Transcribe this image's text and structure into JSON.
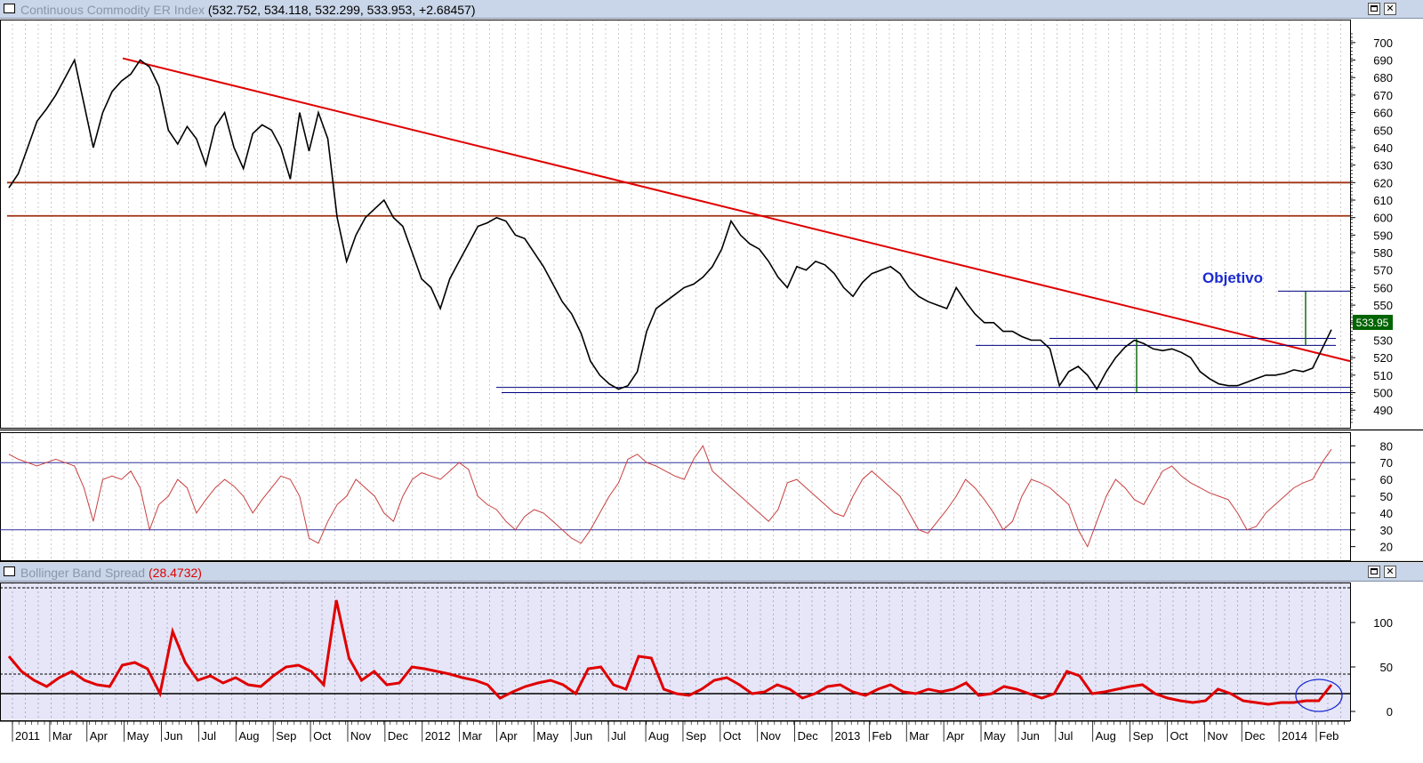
{
  "price_panel": {
    "name": "Continuous Commodity ER Index",
    "values": "(532.752, 534.118, 532.299, 533.953, +2.68457)",
    "last_price_label": "533.95",
    "annotation": "Objetivo"
  },
  "bbspread_panel": {
    "name": "Bollinger Band Spread",
    "value": "(28.4732)"
  },
  "colors": {
    "price": "#000000",
    "trendline": "#e00000",
    "horizontal_resistance": "#a03010",
    "support_lines": "#000080",
    "annotation": "#1a2ad0",
    "rsi": "#c84040",
    "bbspread": "#e00000",
    "bbspread_bg": "#e6e6f8",
    "last_price_bg": "#006400"
  },
  "chart_data": [
    {
      "type": "line",
      "series": [
        {
          "values": [
            617,
            625,
            640,
            655,
            662,
            670,
            680,
            690,
            665,
            640,
            660,
            672,
            678,
            682,
            690,
            686,
            675,
            650,
            642,
            652,
            645,
            630,
            652,
            660,
            640,
            628,
            648,
            653,
            650,
            640,
            622,
            660,
            638,
            660,
            645,
            600,
            575,
            590,
            600,
            605,
            610,
            600,
            595,
            580,
            565,
            560,
            548,
            565,
            575,
            585,
            595,
            597,
            600,
            598,
            590,
            588,
            580,
            572,
            562,
            552,
            545,
            534,
            518,
            510,
            505,
            502,
            504,
            512,
            535,
            548,
            552,
            556,
            560,
            562,
            566,
            572,
            582,
            598,
            590,
            585,
            582,
            575,
            566,
            560,
            572,
            570,
            575,
            573,
            568,
            560,
            555,
            563,
            568,
            570,
            572,
            568,
            560,
            555,
            552,
            550,
            548,
            560,
            552,
            545,
            540,
            540,
            535,
            535,
            532,
            530,
            530,
            525,
            504,
            512,
            515,
            510,
            502,
            512,
            520,
            526,
            530,
            528,
            525,
            524,
            525,
            523,
            520,
            512,
            508,
            505,
            504,
            504,
            506,
            508,
            510,
            510,
            511,
            513,
            512,
            514,
            525,
            536
          ]
        }
      ],
      "y_axis_ticks": [
        490,
        500,
        510,
        520,
        530,
        540,
        550,
        560,
        570,
        580,
        590,
        600,
        610,
        620,
        630,
        640,
        650,
        660,
        670,
        680,
        690,
        700
      ],
      "ylim": [
        483,
        705
      ],
      "x_tick_labels": [
        "2011",
        "Mar",
        "Apr",
        "May",
        "Jun",
        "Jul",
        "Aug",
        "Sep",
        "Oct",
        "Nov",
        "Dec",
        "2012",
        "Mar",
        "Apr",
        "May",
        "Jun",
        "Jul",
        "Aug",
        "Sep",
        "Oct",
        "Nov",
        "Dec",
        "2013",
        "Feb",
        "Mar",
        "Apr",
        "May",
        "Jun",
        "Jul",
        "Aug",
        "Sep",
        "Oct",
        "Nov",
        "Dec",
        "2014",
        "Feb"
      ],
      "horizontal_lines": [
        620,
        601
      ],
      "trendline": {
        "from": [
          "Apr 2011",
          691
        ],
        "to": [
          "Feb 2014",
          518
        ]
      },
      "support_zone": [
        500,
        503
      ],
      "resistance_zone": [
        527,
        531
      ],
      "target": 558
    },
    {
      "type": "line",
      "series": [
        {
          "values": [
            75,
            72,
            70,
            68,
            70,
            72,
            70,
            68,
            55,
            35,
            60,
            62,
            60,
            65,
            55,
            30,
            45,
            50,
            60,
            55,
            40,
            48,
            55,
            60,
            56,
            50,
            40,
            48,
            55,
            62,
            60,
            50,
            25,
            22,
            35,
            45,
            50,
            60,
            55,
            50,
            40,
            35,
            50,
            60,
            64,
            62,
            60,
            65,
            70,
            66,
            50,
            45,
            42,
            35,
            30,
            38,
            42,
            40,
            35,
            30,
            25,
            22,
            30,
            40,
            50,
            58,
            72,
            75,
            70,
            68,
            65,
            62,
            60,
            72,
            80,
            65,
            60,
            55,
            50,
            45,
            40,
            35,
            42,
            58,
            60,
            55,
            50,
            45,
            40,
            38,
            50,
            60,
            65,
            60,
            55,
            50,
            40,
            30,
            28,
            35,
            42,
            50,
            60,
            55,
            48,
            40,
            30,
            35,
            50,
            60,
            58,
            55,
            50,
            45,
            30,
            20,
            35,
            50,
            60,
            55,
            48,
            45,
            55,
            65,
            68,
            62,
            58,
            55,
            52,
            50,
            48,
            40,
            30,
            32,
            40,
            45,
            50,
            55,
            58,
            60,
            70,
            78
          ]
        }
      ],
      "y_axis_ticks": [
        20,
        30,
        40,
        50,
        60,
        70,
        80
      ],
      "ylim": [
        14,
        86
      ],
      "horizontal_lines": [
        70,
        30
      ]
    },
    {
      "type": "line",
      "series": [
        {
          "values": [
            62,
            45,
            35,
            28,
            38,
            45,
            35,
            30,
            28,
            52,
            55,
            48,
            20,
            90,
            55,
            35,
            40,
            32,
            38,
            30,
            28,
            40,
            50,
            52,
            45,
            30,
            125,
            60,
            35,
            45,
            30,
            32,
            50,
            48,
            45,
            42,
            38,
            35,
            30,
            15,
            22,
            28,
            32,
            35,
            30,
            20,
            48,
            50,
            30,
            25,
            62,
            60,
            25,
            20,
            18,
            25,
            35,
            38,
            30,
            20,
            22,
            30,
            25,
            15,
            20,
            28,
            30,
            22,
            18,
            25,
            30,
            22,
            20,
            25,
            22,
            25,
            32,
            18,
            20,
            28,
            25,
            20,
            15,
            20,
            45,
            40,
            20,
            22,
            25,
            28,
            30,
            20,
            15,
            12,
            10,
            12,
            25,
            20,
            12,
            10,
            8,
            10,
            10,
            12,
            12,
            30
          ]
        }
      ],
      "y_axis_ticks": [
        0,
        50,
        100
      ],
      "ylim": [
        -10,
        140
      ],
      "horizontal_lines": [
        20,
        42
      ]
    }
  ]
}
